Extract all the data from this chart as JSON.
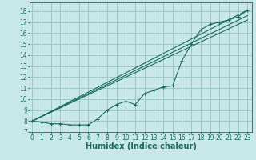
{
  "bg_color": "#c8e8e8",
  "grid_color": "#a0c8c8",
  "line_color": "#1a6b5a",
  "marker_color": "#1a6b5a",
  "xlabel": "Humidex (Indice chaleur)",
  "ylabel_ticks": [
    7,
    8,
    9,
    10,
    11,
    12,
    13,
    14,
    15,
    16,
    17,
    18
  ],
  "xlabel_ticks": [
    0,
    1,
    2,
    3,
    4,
    5,
    6,
    7,
    8,
    9,
    10,
    11,
    12,
    13,
    14,
    15,
    16,
    17,
    18,
    19,
    20,
    21,
    22,
    23
  ],
  "xlim": [
    -0.3,
    23.5
  ],
  "ylim": [
    7.0,
    18.8
  ],
  "line1_x": [
    0,
    1,
    2,
    3,
    4,
    5,
    6,
    7,
    8,
    9,
    10,
    11,
    12,
    13,
    14,
    15,
    16,
    17,
    18,
    19,
    20,
    21,
    22,
    23
  ],
  "line1_y": [
    8.0,
    7.9,
    7.75,
    7.75,
    7.65,
    7.65,
    7.65,
    8.2,
    9.0,
    9.5,
    9.8,
    9.5,
    10.5,
    10.8,
    11.1,
    11.2,
    13.5,
    15.0,
    16.3,
    16.8,
    17.0,
    17.2,
    17.5,
    18.1
  ],
  "line2_x": [
    0,
    23
  ],
  "line2_y": [
    8.0,
    18.1
  ],
  "line3_x": [
    0,
    23
  ],
  "line3_y": [
    8.0,
    17.6
  ],
  "line4_x": [
    0,
    23
  ],
  "line4_y": [
    8.0,
    17.2
  ],
  "font_size_ticks": 5.5,
  "font_size_label": 7.0
}
